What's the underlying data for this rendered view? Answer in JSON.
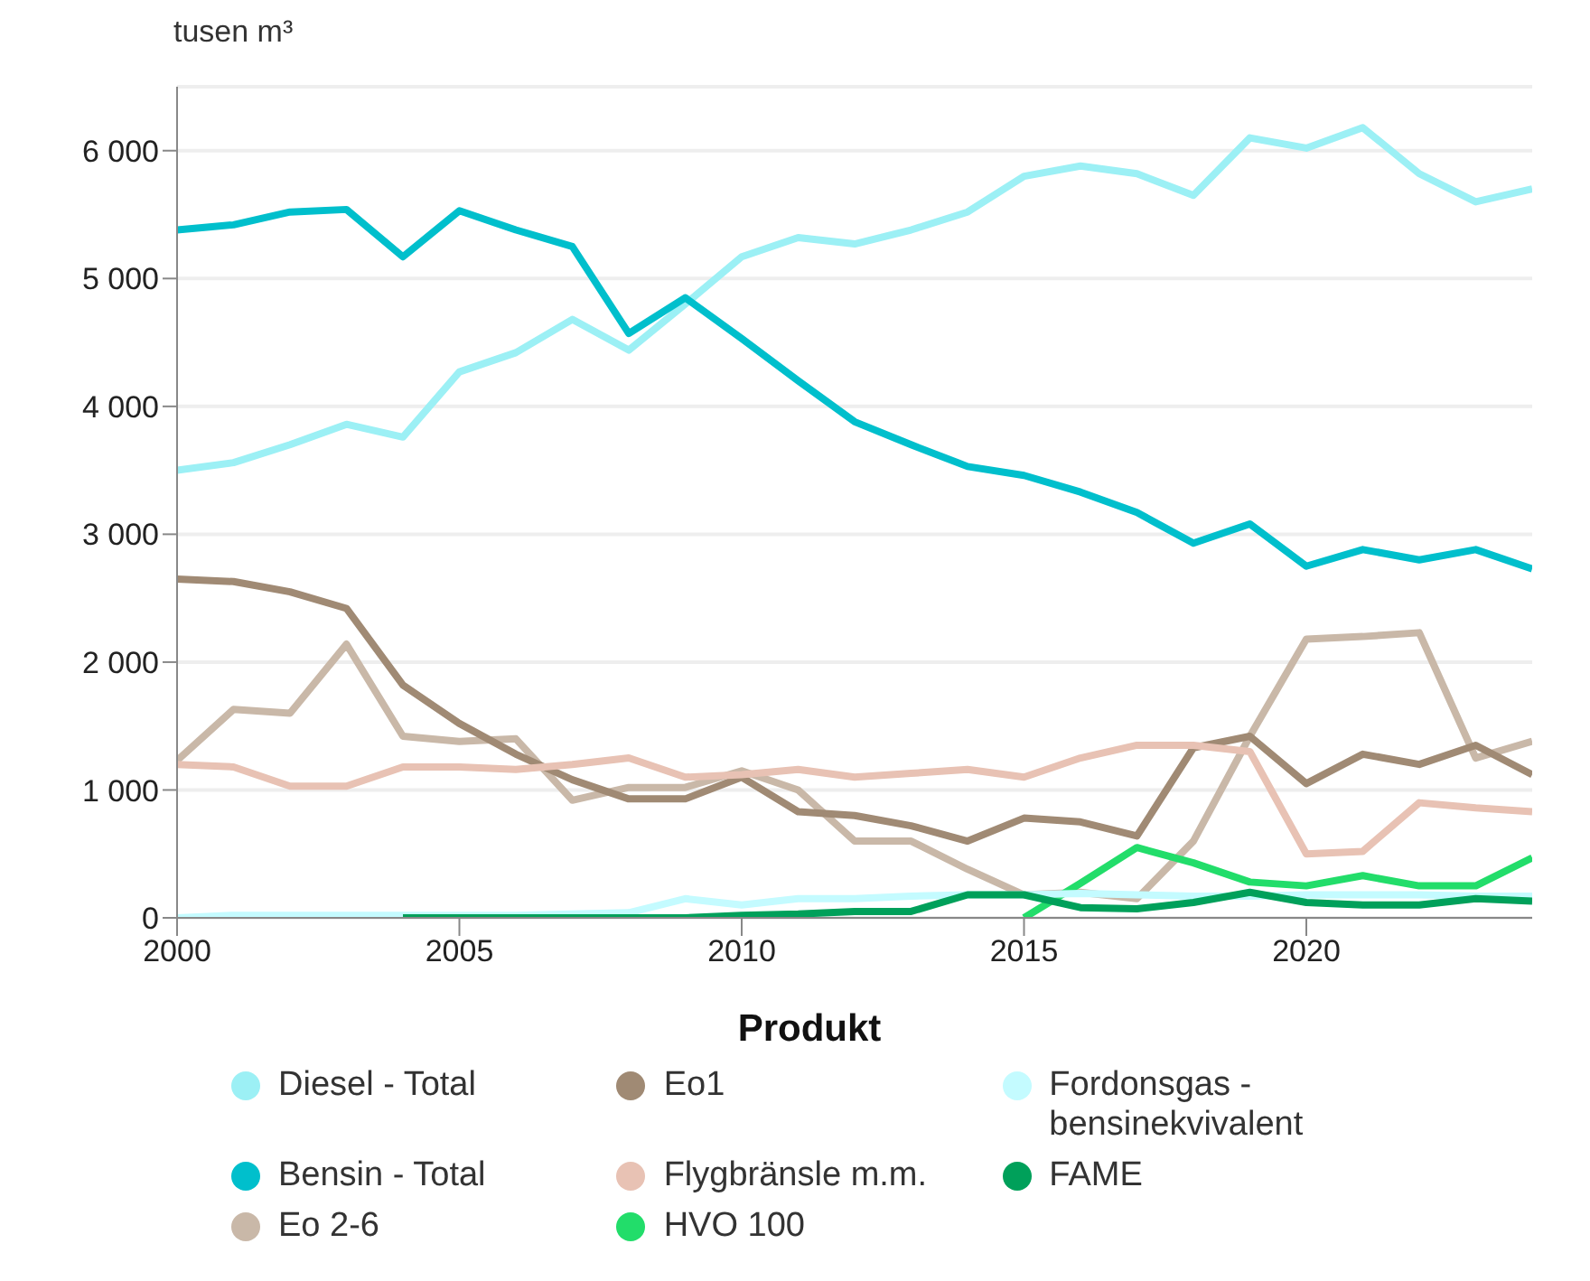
{
  "chart_data": {
    "type": "line",
    "ylabel": "tusen m³",
    "legend_title": "Produkt",
    "legend": "bottom",
    "grid": "y",
    "line_style": "solid",
    "marker": "none",
    "x": [
      2000,
      2001,
      2002,
      2003,
      2004,
      2005,
      2006,
      2007,
      2008,
      2009,
      2010,
      2011,
      2012,
      2013,
      2014,
      2015,
      2016,
      2017,
      2018,
      2019,
      2020,
      2021,
      2022,
      2023,
      2024
    ],
    "xlim": [
      2000,
      2024
    ],
    "xticks": [
      2000,
      2005,
      2010,
      2015,
      2020
    ],
    "ylim": [
      0,
      6500
    ],
    "yticks": [
      {
        "value": 0,
        "label": "0"
      },
      {
        "value": 1000,
        "label": "1 000"
      },
      {
        "value": 2000,
        "label": "2 000"
      },
      {
        "value": 3000,
        "label": "3 000"
      },
      {
        "value": 4000,
        "label": "4 000"
      },
      {
        "value": 5000,
        "label": "5 000"
      },
      {
        "value": 6000,
        "label": "6 000"
      }
    ],
    "series": [
      {
        "name": "Diesel - Total",
        "color": "#9cf0f5",
        "values": [
          3500,
          3560,
          3700,
          3860,
          3760,
          4270,
          4420,
          4680,
          4440,
          4800,
          5170,
          5320,
          5270,
          5380,
          5520,
          5800,
          5880,
          5820,
          5650,
          6100,
          6020,
          6180,
          5820,
          5600,
          5700
        ]
      },
      {
        "name": "Bensin - Total",
        "color": "#00bfcc",
        "values": [
          5380,
          5420,
          5520,
          5540,
          5170,
          5530,
          5380,
          5250,
          4570,
          4850,
          4530,
          4200,
          3880,
          3700,
          3530,
          3460,
          3330,
          3170,
          2930,
          3080,
          2750,
          2880,
          2800,
          2880,
          2730
        ]
      },
      {
        "name": "Eo 2-6",
        "color": "#c9b8a8",
        "values": [
          1230,
          1630,
          1600,
          2140,
          1420,
          1380,
          1400,
          920,
          1020,
          1020,
          1150,
          1000,
          600,
          600,
          380,
          180,
          200,
          150,
          600,
          1420,
          2180,
          2200,
          2230,
          1250,
          1380
        ]
      },
      {
        "name": "Eo1",
        "color": "#a08a74",
        "values": [
          2650,
          2630,
          2550,
          2420,
          1820,
          1520,
          1280,
          1080,
          930,
          930,
          1100,
          830,
          800,
          720,
          600,
          780,
          750,
          640,
          1330,
          1420,
          1050,
          1280,
          1200,
          1350,
          1120
        ]
      },
      {
        "name": "Flygbränsle m.m.",
        "color": "#e8c2b4",
        "values": [
          1200,
          1180,
          1030,
          1030,
          1180,
          1180,
          1160,
          1200,
          1250,
          1100,
          1120,
          1160,
          1100,
          1130,
          1160,
          1100,
          1250,
          1350,
          1350,
          1300,
          500,
          520,
          900,
          860,
          830
        ]
      },
      {
        "name": "HVO 100",
        "color": "#22dd6a",
        "values": [
          null,
          null,
          null,
          null,
          null,
          null,
          null,
          null,
          null,
          null,
          null,
          null,
          null,
          null,
          null,
          0,
          270,
          550,
          430,
          280,
          250,
          330,
          250,
          250,
          470
        ]
      },
      {
        "name": "Fordonsgas - bensinekvivalent",
        "color": "#c4fbff",
        "values": [
          0,
          20,
          20,
          20,
          20,
          20,
          20,
          30,
          40,
          150,
          100,
          150,
          150,
          170,
          180,
          180,
          190,
          180,
          170,
          170,
          180,
          180,
          180,
          170,
          170
        ]
      },
      {
        "name": "FAME",
        "color": "#00a05a",
        "values": [
          null,
          null,
          null,
          null,
          0,
          0,
          0,
          0,
          0,
          0,
          20,
          30,
          50,
          50,
          180,
          180,
          80,
          70,
          120,
          200,
          120,
          100,
          100,
          150,
          130
        ]
      }
    ]
  }
}
